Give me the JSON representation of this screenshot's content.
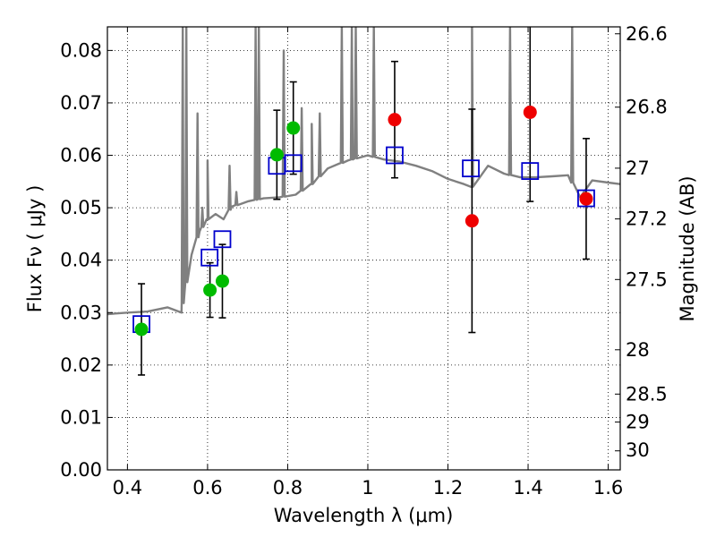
{
  "chart_data": {
    "type": "scatter",
    "title": "",
    "xlabel": "Wavelength  λ (μm)",
    "ylabel": "Flux  Fν ( μJy )",
    "ylabel_right": "Magnitude (AB)",
    "xlim": [
      0.35,
      1.63
    ],
    "ylim": [
      0.0,
      0.0845
    ],
    "grid": true,
    "grid_style": "dotted",
    "x_ticks": [
      0.4,
      0.6,
      0.8,
      1.0,
      1.2,
      1.4,
      1.6
    ],
    "x_tick_labels": [
      "0.4",
      "0.6",
      "0.8",
      "1",
      "1.2",
      "1.4",
      "1.6"
    ],
    "y_ticks": [
      0.0,
      0.01,
      0.02,
      0.03,
      0.04,
      0.05,
      0.06,
      0.07,
      0.08
    ],
    "y_tick_labels": [
      "0.00",
      "0.01",
      "0.02",
      "0.03",
      "0.04",
      "0.05",
      "0.06",
      "0.07",
      "0.08"
    ],
    "right_ticks": [
      {
        "label": "26.6",
        "value": 26.6
      },
      {
        "label": "26.8",
        "value": 26.8
      },
      {
        "label": "27",
        "value": 27.0
      },
      {
        "label": "27.2",
        "value": 27.2
      },
      {
        "label": "27.5",
        "value": 27.5
      },
      {
        "label": "28",
        "value": 28.0
      },
      {
        "label": "28.5",
        "value": 28.5
      },
      {
        "label": "29",
        "value": 29.0
      },
      {
        "label": "30",
        "value": 30.0
      }
    ],
    "colors": {
      "model": "#808080",
      "model_fluxes": "#0000cc",
      "hst_points": "#00bb00",
      "ir_points": "#ee0000",
      "errorbars": "#000000"
    },
    "series": [
      {
        "type": "line",
        "points": [
          [
            0.35,
            0.0297
          ],
          [
            0.4,
            0.03
          ],
          [
            0.45,
            0.0302
          ],
          [
            0.5,
            0.031
          ],
          [
            0.535,
            0.03
          ],
          [
            0.54,
            0.033
          ],
          [
            0.56,
            0.041
          ],
          [
            0.58,
            0.0455
          ],
          [
            0.6,
            0.0478
          ],
          [
            0.62,
            0.0488
          ],
          [
            0.64,
            0.0478
          ],
          [
            0.66,
            0.0502
          ],
          [
            0.7,
            0.0512
          ],
          [
            0.74,
            0.0518
          ],
          [
            0.78,
            0.052
          ],
          [
            0.82,
            0.0525
          ],
          [
            0.86,
            0.0545
          ],
          [
            0.9,
            0.0575
          ],
          [
            0.95,
            0.059
          ],
          [
            1.0,
            0.06
          ],
          [
            1.04,
            0.0592
          ],
          [
            1.08,
            0.0588
          ],
          [
            1.12,
            0.058
          ],
          [
            1.16,
            0.057
          ],
          [
            1.2,
            0.0555
          ],
          [
            1.24,
            0.0545
          ],
          [
            1.26,
            0.054
          ],
          [
            1.3,
            0.058
          ],
          [
            1.34,
            0.0565
          ],
          [
            1.38,
            0.0558
          ],
          [
            1.42,
            0.0558
          ],
          [
            1.46,
            0.056
          ],
          [
            1.5,
            0.0562
          ],
          [
            1.53,
            0.052
          ],
          [
            1.56,
            0.0552
          ],
          [
            1.6,
            0.0548
          ],
          [
            1.63,
            0.0545
          ]
        ],
        "emission_lines": [
          {
            "x": 0.538,
            "peak": 0.0845
          },
          {
            "x": 0.547,
            "peak": 0.0845
          },
          {
            "x": 0.575,
            "peak": 0.068
          },
          {
            "x": 0.587,
            "peak": 0.05
          },
          {
            "x": 0.6,
            "peak": 0.059
          },
          {
            "x": 0.655,
            "peak": 0.058
          },
          {
            "x": 0.672,
            "peak": 0.053
          },
          {
            "x": 0.72,
            "peak": 0.0845
          },
          {
            "x": 0.728,
            "peak": 0.0845
          },
          {
            "x": 0.79,
            "peak": 0.08
          },
          {
            "x": 0.835,
            "peak": 0.069
          },
          {
            "x": 0.86,
            "peak": 0.066
          },
          {
            "x": 0.88,
            "peak": 0.068
          },
          {
            "x": 0.935,
            "peak": 0.0845
          },
          {
            "x": 0.96,
            "peak": 0.0845
          },
          {
            "x": 0.97,
            "peak": 0.0845
          },
          {
            "x": 1.015,
            "peak": 0.0845
          },
          {
            "x": 1.26,
            "peak": 0.0845
          },
          {
            "x": 1.355,
            "peak": 0.0845
          },
          {
            "x": 1.51,
            "peak": 0.0845
          }
        ]
      },
      {
        "type": "scatter",
        "marker": "square",
        "points": [
          [
            0.435,
            0.0278
          ],
          [
            0.605,
            0.0405
          ],
          [
            0.637,
            0.044
          ],
          [
            0.773,
            0.058
          ],
          [
            0.814,
            0.0585
          ],
          [
            1.067,
            0.06
          ],
          [
            1.257,
            0.0575
          ],
          [
            1.405,
            0.057
          ],
          [
            1.545,
            0.0518
          ]
        ]
      },
      {
        "type": "scatter",
        "marker": "circle",
        "points": [
          [
            0.435,
            0.0268
          ],
          [
            0.606,
            0.0343
          ],
          [
            0.637,
            0.036
          ],
          [
            0.773,
            0.0601
          ],
          [
            0.814,
            0.0652
          ]
        ],
        "errors": [
          0.0087,
          0.0052,
          0.007,
          0.0085,
          0.0088
        ]
      },
      {
        "type": "scatter",
        "marker": "circle",
        "points": [
          [
            1.067,
            0.0668
          ],
          [
            1.26,
            0.0475
          ],
          [
            1.405,
            0.0682
          ],
          [
            1.545,
            0.0517
          ]
        ],
        "errors": [
          0.0111,
          0.0213,
          0.017,
          0.0115
        ]
      }
    ]
  }
}
